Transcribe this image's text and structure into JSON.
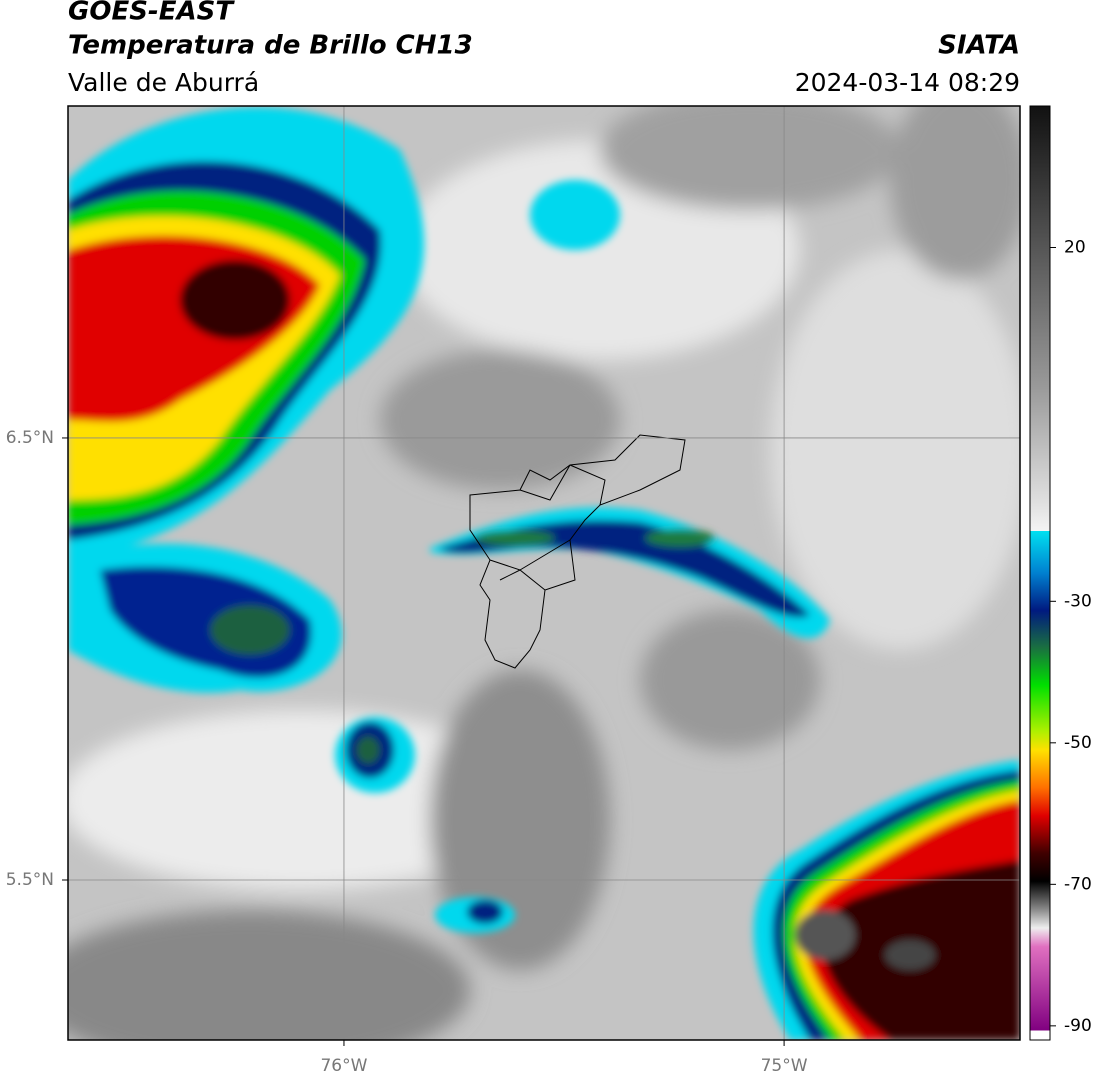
{
  "header": {
    "title": "GOES-EAST",
    "subtitle": "Temperatura de Brillo CH13",
    "region": "Valle de Aburrá",
    "source": "SIATA",
    "datetime": "2024-03-14 08:29"
  },
  "map": {
    "xlim": [
      -76.627,
      -74.464
    ],
    "ylim": [
      5.138,
      7.251
    ],
    "xticks": [
      {
        "value": -76,
        "label": "76°W"
      },
      {
        "value": -75,
        "label": "75°W"
      }
    ],
    "yticks": [
      {
        "value": 6.5,
        "label": "6.5°N"
      },
      {
        "value": 5.5,
        "label": "5.5°N"
      }
    ],
    "grid": true
  },
  "colorbar": {
    "clim": [
      -92,
      40
    ],
    "ticks": [
      20,
      -30,
      -50,
      -70,
      -90
    ]
  }
}
